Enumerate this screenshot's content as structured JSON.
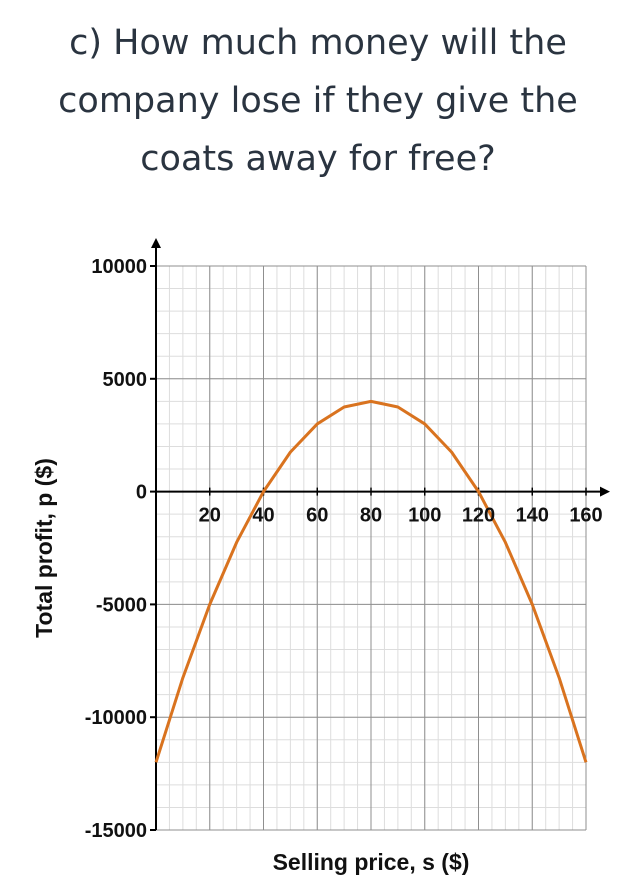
{
  "question": {
    "lines": [
      "c) How much money will the",
      "company lose if they give the",
      "coats away for free?"
    ]
  },
  "chart_data": {
    "type": "line",
    "title": "",
    "xlabel": "Selling price, s ($)",
    "ylabel": "Total profit, p ($)",
    "xlim": [
      0,
      160
    ],
    "ylim": [
      -15000,
      10000
    ],
    "x_ticks": [
      20,
      40,
      60,
      80,
      100,
      120,
      140,
      160
    ],
    "y_ticks": [
      10000,
      5000,
      0,
      -5000,
      -10000,
      -15000
    ],
    "x_tick_labels": [
      "20",
      "40",
      "60",
      "80",
      "100",
      "120",
      "140",
      "160"
    ],
    "y_tick_labels": [
      "10000",
      "5000",
      "0",
      "-5000",
      "-10000",
      "-15000"
    ],
    "grid": true,
    "series": [
      {
        "color": "#d9731f",
        "x": [
          0,
          10,
          20,
          30,
          40,
          50,
          60,
          70,
          80,
          90,
          100,
          110,
          120,
          130,
          140,
          150,
          160
        ],
        "y": [
          -12000,
          -8250,
          -5000,
          -2250,
          0,
          1750,
          3000,
          3750,
          4000,
          3750,
          3000,
          1750,
          0,
          -2250,
          -5000,
          -8250,
          -12000
        ]
      }
    ]
  }
}
